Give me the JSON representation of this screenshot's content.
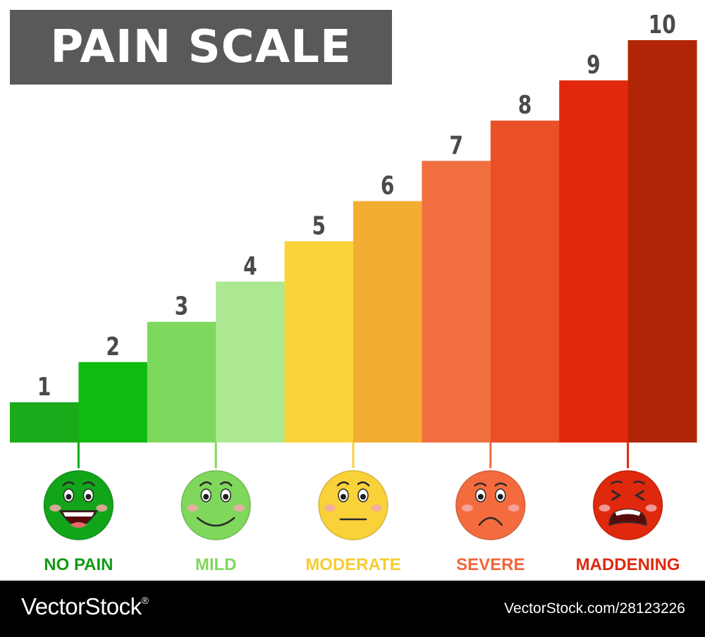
{
  "title": "PAIN SCALE",
  "chart_data": {
    "type": "bar",
    "title": "PAIN SCALE",
    "xlabel": "",
    "ylabel": "",
    "ylim": [
      0,
      10
    ],
    "grid": false,
    "categories": [
      "1",
      "2",
      "3",
      "4",
      "5",
      "6",
      "7",
      "8",
      "9",
      "10"
    ],
    "values": [
      1,
      2,
      3,
      4,
      5,
      6,
      7,
      8,
      9,
      10
    ],
    "colors": [
      "#1aaa1a",
      "#11bb11",
      "#7dd95e",
      "#ace892",
      "#fad338",
      "#f4ad33",
      "#f2703f",
      "#ea5025",
      "#e2280c",
      "#b02506"
    ],
    "data_labels": [
      "1",
      "2",
      "3",
      "4",
      "5",
      "6",
      "7",
      "8",
      "9",
      "10"
    ]
  },
  "faces": [
    {
      "name": "no-pain",
      "label": "NO PAIN",
      "bar_index": 0,
      "mood": "laughing",
      "color": "#13a519",
      "label_color": "#129a14"
    },
    {
      "name": "mild",
      "label": "MILD",
      "bar_index": 2,
      "mood": "smile",
      "color": "#7fd85c",
      "label_color": "#7fd85c"
    },
    {
      "name": "moderate",
      "label": "MODERATE",
      "bar_index": 4,
      "mood": "neutral",
      "color": "#f9d23a",
      "label_color": "#f6cd32"
    },
    {
      "name": "severe",
      "label": "SEVERE",
      "bar_index": 6,
      "mood": "frown",
      "color": "#f46c3e",
      "label_color": "#f4663a"
    },
    {
      "name": "maddening",
      "label": "MADDENING",
      "bar_index": 8,
      "mood": "crying",
      "color": "#e0280c",
      "label_color": "#dd2a0e"
    }
  ],
  "watermark": {
    "brand": "VectorStock",
    "reg": "®",
    "image_id": "VectorStock.com/28123226"
  }
}
